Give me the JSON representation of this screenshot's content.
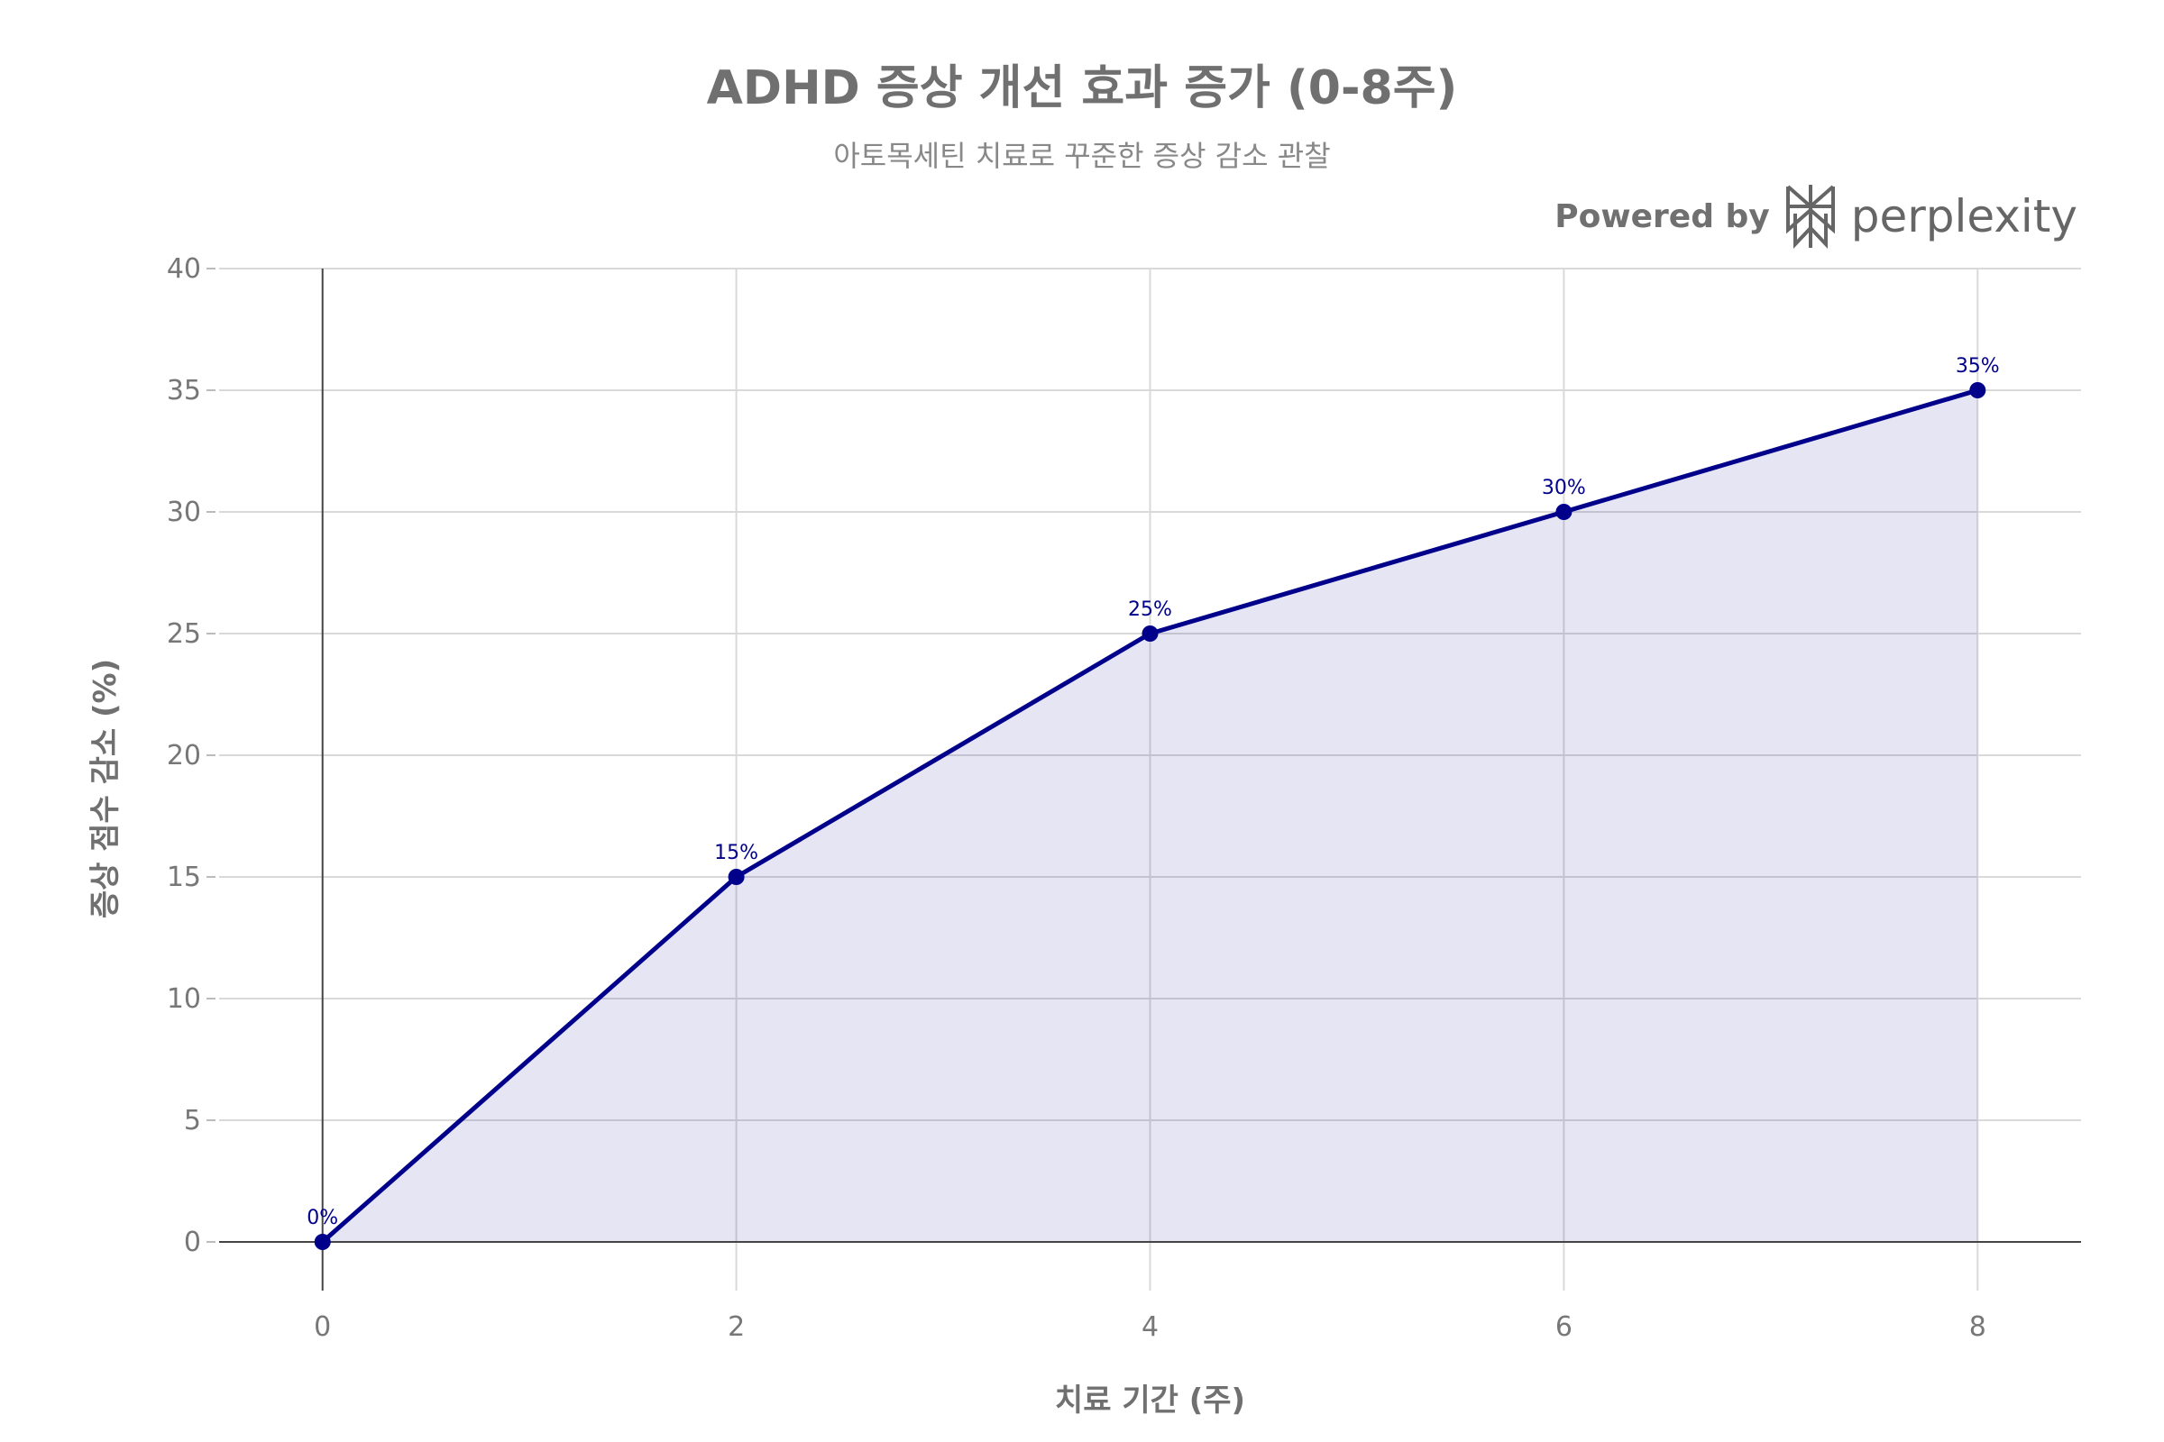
{
  "chart_data": {
    "type": "area",
    "title": "ADHD 증상 개선 효과 증가 (0-8주)",
    "subtitle": "아토목세틴 치료로 꾸준한 증상 감소 관찰",
    "xlabel": "치료 기간 (주)",
    "ylabel": "증상 점수 감소 (%)",
    "x": [
      0,
      2,
      4,
      6,
      8
    ],
    "values": [
      0,
      15,
      25,
      30,
      35
    ],
    "data_labels": [
      "0%",
      "15%",
      "25%",
      "30%",
      "35%"
    ],
    "xlim": [
      -0.5,
      8.5
    ],
    "ylim": [
      -2,
      40
    ],
    "x_ticks": [
      0,
      2,
      4,
      6,
      8
    ],
    "x_tick_labels": [
      "0",
      "2",
      "4",
      "6",
      "8"
    ],
    "y_ticks": [
      0,
      5,
      10,
      15,
      20,
      25,
      30,
      35,
      40
    ],
    "y_tick_labels": [
      "0",
      "5",
      "10",
      "15",
      "20",
      "25",
      "30",
      "35",
      "40"
    ],
    "grid": true,
    "line_color": "#00008b",
    "fill_color": "#e5e5f3",
    "grid_color": "#d9d9d9"
  },
  "branding": {
    "prefix": "Powered by",
    "name": "perplexity",
    "icon": "perplexity-logo-icon"
  }
}
